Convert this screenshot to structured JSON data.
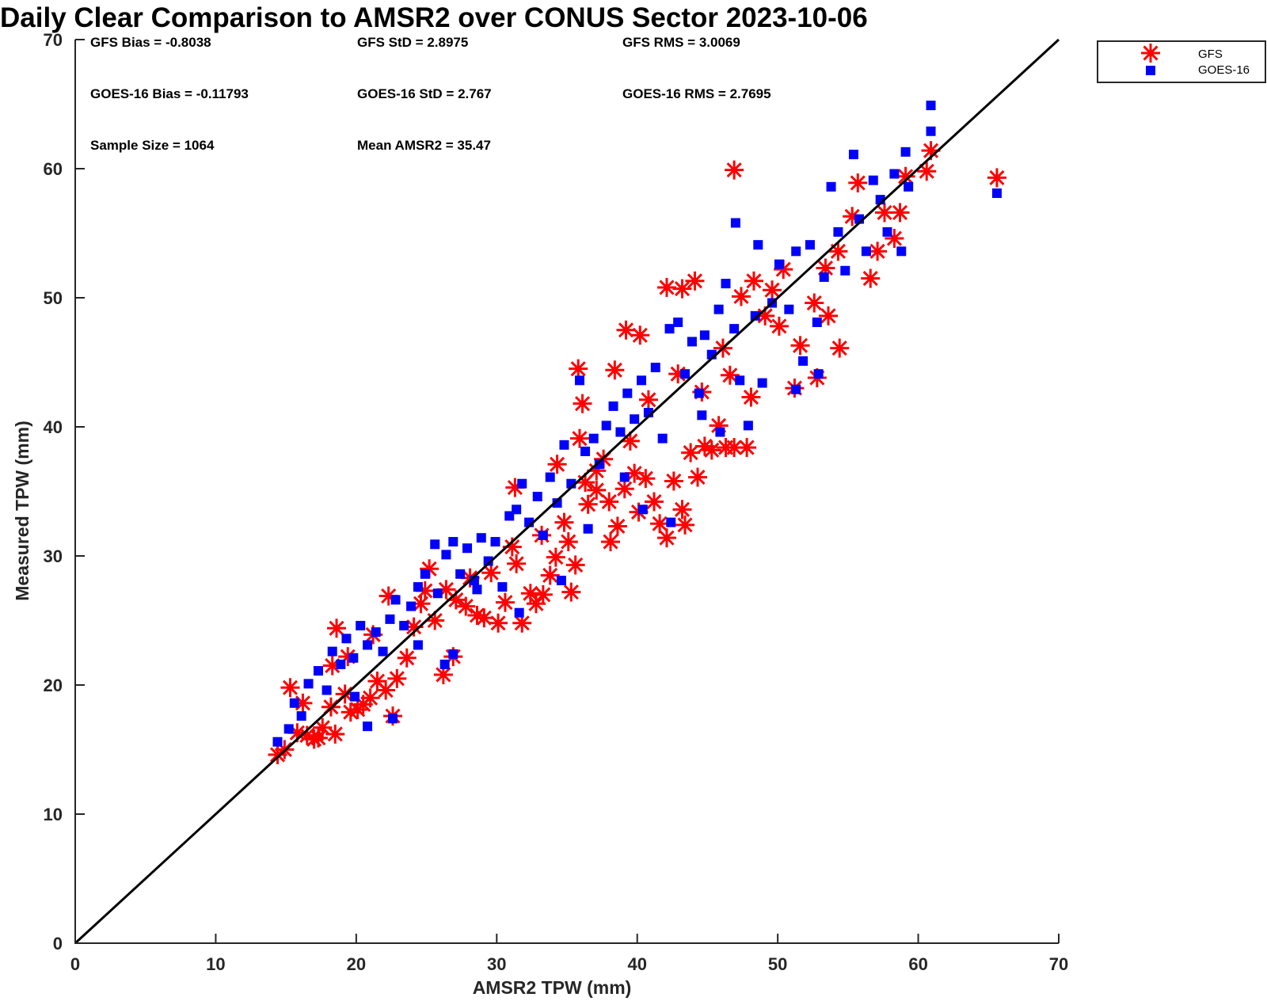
{
  "chart_data": {
    "type": "scatter",
    "title": "Daily Clear Comparison to AMSR2 over CONUS Sector 2023-10-06",
    "xlabel": "AMSR2 TPW (mm)",
    "ylabel": "Measured TPW (mm)",
    "xlim": [
      0,
      70
    ],
    "ylim": [
      0,
      70
    ],
    "xticks": [
      "0",
      "10",
      "20",
      "30",
      "40",
      "50",
      "60",
      "70"
    ],
    "yticks": [
      "0",
      "10",
      "20",
      "30",
      "40",
      "50",
      "60",
      "70"
    ],
    "grid": false,
    "legend_position": "outside top-right",
    "reference_line": {
      "x": [
        0,
        70
      ],
      "y": [
        0,
        70
      ],
      "color": "#000000"
    },
    "annotations": {
      "gfs_bias": "GFS Bias = -0.8038",
      "gfs_std": "GFS StD = 2.8975",
      "gfs_rms": "GFS RMS = 3.0069",
      "goes_bias": "GOES-16 Bias = -0.11793",
      "goes_std": "GOES-16 StD = 2.767",
      "goes_rms": "GOES-16 RMS = 2.7695",
      "sample_size": "Sample Size = 1064",
      "mean_amsr2": "Mean AMSR2 = 35.47"
    },
    "series": [
      {
        "name": "GFS",
        "marker": "asterisk",
        "color": "#ff0000",
        "points": [
          [
            14.4,
            14.6
          ],
          [
            14.9,
            15.0
          ],
          [
            15.3,
            19.8
          ],
          [
            15.8,
            16.3
          ],
          [
            16.5,
            16.1
          ],
          [
            17.0,
            15.8
          ],
          [
            17.3,
            15.9
          ],
          [
            17.6,
            16.7
          ],
          [
            18.5,
            16.2
          ],
          [
            18.2,
            18.3
          ],
          [
            18.6,
            24.4
          ],
          [
            19.2,
            19.3
          ],
          [
            19.6,
            17.9
          ],
          [
            20.1,
            18.1
          ],
          [
            20.5,
            18.5
          ],
          [
            21.0,
            19.0
          ],
          [
            21.5,
            20.3
          ],
          [
            22.1,
            19.6
          ],
          [
            22.6,
            17.6
          ],
          [
            22.9,
            20.5
          ],
          [
            22.3,
            26.9
          ],
          [
            23.6,
            22.1
          ],
          [
            24.1,
            24.5
          ],
          [
            24.9,
            27.3
          ],
          [
            25.2,
            29.0
          ],
          [
            25.6,
            25.0
          ],
          [
            26.2,
            20.8
          ],
          [
            26.9,
            22.2
          ],
          [
            27.1,
            26.6
          ],
          [
            27.8,
            26.1
          ],
          [
            28.6,
            25.4
          ],
          [
            29.1,
            25.2
          ],
          [
            29.6,
            28.7
          ],
          [
            30.1,
            24.8
          ],
          [
            30.6,
            26.4
          ],
          [
            31.1,
            30.7
          ],
          [
            31.3,
            35.3
          ],
          [
            31.8,
            24.8
          ],
          [
            32.4,
            27.1
          ],
          [
            32.8,
            26.3
          ],
          [
            33.3,
            27.0
          ],
          [
            33.8,
            28.5
          ],
          [
            34.2,
            29.9
          ],
          [
            34.8,
            32.6
          ],
          [
            35.1,
            31.1
          ],
          [
            35.3,
            27.2
          ],
          [
            35.6,
            29.3
          ],
          [
            35.8,
            44.5
          ],
          [
            36.1,
            41.8
          ],
          [
            36.5,
            34.0
          ],
          [
            37.1,
            35.1
          ],
          [
            37.6,
            37.5
          ],
          [
            38.0,
            34.2
          ],
          [
            38.1,
            31.1
          ],
          [
            38.6,
            32.3
          ],
          [
            39.1,
            35.2
          ],
          [
            39.5,
            38.9
          ],
          [
            39.8,
            36.4
          ],
          [
            40.1,
            33.4
          ],
          [
            40.6,
            36.0
          ],
          [
            41.2,
            34.2
          ],
          [
            41.6,
            32.5
          ],
          [
            42.1,
            31.4
          ],
          [
            42.6,
            35.8
          ],
          [
            43.2,
            33.6
          ],
          [
            43.4,
            32.4
          ],
          [
            43.8,
            38.0
          ],
          [
            44.3,
            36.1
          ],
          [
            44.8,
            38.5
          ],
          [
            45.3,
            38.2
          ],
          [
            45.8,
            40.1
          ],
          [
            46.3,
            38.4
          ],
          [
            46.9,
            38.4
          ],
          [
            47.8,
            38.4
          ],
          [
            42.1,
            50.8
          ],
          [
            43.2,
            50.7
          ],
          [
            44.1,
            51.3
          ],
          [
            38.4,
            44.4
          ],
          [
            39.2,
            47.5
          ],
          [
            40.2,
            47.1
          ],
          [
            47.4,
            50.1
          ],
          [
            48.3,
            51.3
          ],
          [
            49.1,
            48.6
          ],
          [
            50.1,
            47.8
          ],
          [
            51.6,
            46.3
          ],
          [
            52.6,
            49.6
          ],
          [
            53.6,
            48.6
          ],
          [
            54.4,
            46.1
          ],
          [
            46.6,
            44.0
          ],
          [
            48.1,
            42.3
          ],
          [
            51.2,
            43.0
          ],
          [
            52.8,
            43.8
          ],
          [
            53.4,
            52.3
          ],
          [
            54.3,
            53.6
          ],
          [
            55.3,
            56.3
          ],
          [
            55.7,
            58.9
          ],
          [
            56.6,
            51.5
          ],
          [
            57.1,
            53.6
          ],
          [
            57.6,
            56.6
          ],
          [
            58.3,
            54.6
          ],
          [
            58.7,
            56.6
          ],
          [
            59.1,
            59.4
          ],
          [
            60.6,
            59.8
          ],
          [
            60.9,
            61.4
          ],
          [
            46.9,
            59.9
          ],
          [
            65.6,
            59.3
          ],
          [
            18.3,
            21.5
          ],
          [
            16.2,
            18.6
          ],
          [
            21.2,
            23.9
          ],
          [
            19.4,
            22.2
          ],
          [
            24.6,
            26.3
          ],
          [
            26.4,
            27.4
          ],
          [
            28.1,
            28.3
          ],
          [
            31.4,
            29.4
          ],
          [
            33.2,
            31.6
          ],
          [
            36.3,
            35.7
          ],
          [
            37.1,
            36.6
          ],
          [
            40.8,
            42.1
          ],
          [
            42.9,
            44.1
          ],
          [
            44.6,
            42.7
          ],
          [
            46.1,
            46.1
          ],
          [
            49.6,
            50.6
          ],
          [
            50.4,
            52.2
          ],
          [
            35.9,
            39.1
          ],
          [
            34.3,
            37.1
          ]
        ]
      },
      {
        "name": "GOES-16",
        "marker": "square",
        "color": "#0000ff",
        "points": [
          [
            14.4,
            15.6
          ],
          [
            15.2,
            16.6
          ],
          [
            15.6,
            18.6
          ],
          [
            16.1,
            17.6
          ],
          [
            16.6,
            20.1
          ],
          [
            17.3,
            21.1
          ],
          [
            17.9,
            19.6
          ],
          [
            18.3,
            22.6
          ],
          [
            18.9,
            21.6
          ],
          [
            19.3,
            23.6
          ],
          [
            19.8,
            22.1
          ],
          [
            20.3,
            24.6
          ],
          [
            20.8,
            23.1
          ],
          [
            20.8,
            16.8
          ],
          [
            21.4,
            24.1
          ],
          [
            21.9,
            22.6
          ],
          [
            22.4,
            25.1
          ],
          [
            22.8,
            26.6
          ],
          [
            23.4,
            24.6
          ],
          [
            23.9,
            26.1
          ],
          [
            24.4,
            27.6
          ],
          [
            24.9,
            28.6
          ],
          [
            25.6,
            30.9
          ],
          [
            25.8,
            27.1
          ],
          [
            26.4,
            30.1
          ],
          [
            26.9,
            31.1
          ],
          [
            27.4,
            28.6
          ],
          [
            27.9,
            30.6
          ],
          [
            28.4,
            28.1
          ],
          [
            28.9,
            31.4
          ],
          [
            29.4,
            29.6
          ],
          [
            29.9,
            31.1
          ],
          [
            30.4,
            27.6
          ],
          [
            30.9,
            33.1
          ],
          [
            31.4,
            33.6
          ],
          [
            31.8,
            35.6
          ],
          [
            32.3,
            32.6
          ],
          [
            32.9,
            34.6
          ],
          [
            33.3,
            31.6
          ],
          [
            33.8,
            36.1
          ],
          [
            34.3,
            34.1
          ],
          [
            34.8,
            38.6
          ],
          [
            35.3,
            35.6
          ],
          [
            35.9,
            43.6
          ],
          [
            36.3,
            38.1
          ],
          [
            36.9,
            39.1
          ],
          [
            37.3,
            37.1
          ],
          [
            37.8,
            40.1
          ],
          [
            38.3,
            41.6
          ],
          [
            38.8,
            39.6
          ],
          [
            39.3,
            42.6
          ],
          [
            39.8,
            40.6
          ],
          [
            40.3,
            43.6
          ],
          [
            40.8,
            41.1
          ],
          [
            41.3,
            44.6
          ],
          [
            41.8,
            39.1
          ],
          [
            42.3,
            47.6
          ],
          [
            42.9,
            48.1
          ],
          [
            43.4,
            44.1
          ],
          [
            43.9,
            46.6
          ],
          [
            44.4,
            42.6
          ],
          [
            44.8,
            47.1
          ],
          [
            45.3,
            45.6
          ],
          [
            45.8,
            49.1
          ],
          [
            46.3,
            51.1
          ],
          [
            46.9,
            47.6
          ],
          [
            47.3,
            43.6
          ],
          [
            47.9,
            40.1
          ],
          [
            48.4,
            48.6
          ],
          [
            48.6,
            54.1
          ],
          [
            49.6,
            49.6
          ],
          [
            50.1,
            52.6
          ],
          [
            50.8,
            49.1
          ],
          [
            51.3,
            53.6
          ],
          [
            51.8,
            45.1
          ],
          [
            52.3,
            54.1
          ],
          [
            52.8,
            48.1
          ],
          [
            53.3,
            51.6
          ],
          [
            53.8,
            58.6
          ],
          [
            54.3,
            55.1
          ],
          [
            54.8,
            52.1
          ],
          [
            55.4,
            61.1
          ],
          [
            55.8,
            56.1
          ],
          [
            56.3,
            53.6
          ],
          [
            56.8,
            59.1
          ],
          [
            57.3,
            57.6
          ],
          [
            57.8,
            55.1
          ],
          [
            58.3,
            59.6
          ],
          [
            58.8,
            53.6
          ],
          [
            59.1,
            61.3
          ],
          [
            59.3,
            58.6
          ],
          [
            60.9,
            64.9
          ],
          [
            60.9,
            62.9
          ],
          [
            65.6,
            58.1
          ],
          [
            47.0,
            55.8
          ],
          [
            34.6,
            28.1
          ],
          [
            26.3,
            21.6
          ],
          [
            26.9,
            22.4
          ],
          [
            22.6,
            17.4
          ],
          [
            40.4,
            33.6
          ],
          [
            42.4,
            32.6
          ],
          [
            44.6,
            40.9
          ],
          [
            48.9,
            43.4
          ],
          [
            51.3,
            42.9
          ],
          [
            52.9,
            44.1
          ],
          [
            45.9,
            39.6
          ],
          [
            36.5,
            32.1
          ],
          [
            39.1,
            36.1
          ],
          [
            31.6,
            25.6
          ],
          [
            28.6,
            27.4
          ],
          [
            24.4,
            23.1
          ],
          [
            19.9,
            19.1
          ]
        ]
      }
    ]
  }
}
